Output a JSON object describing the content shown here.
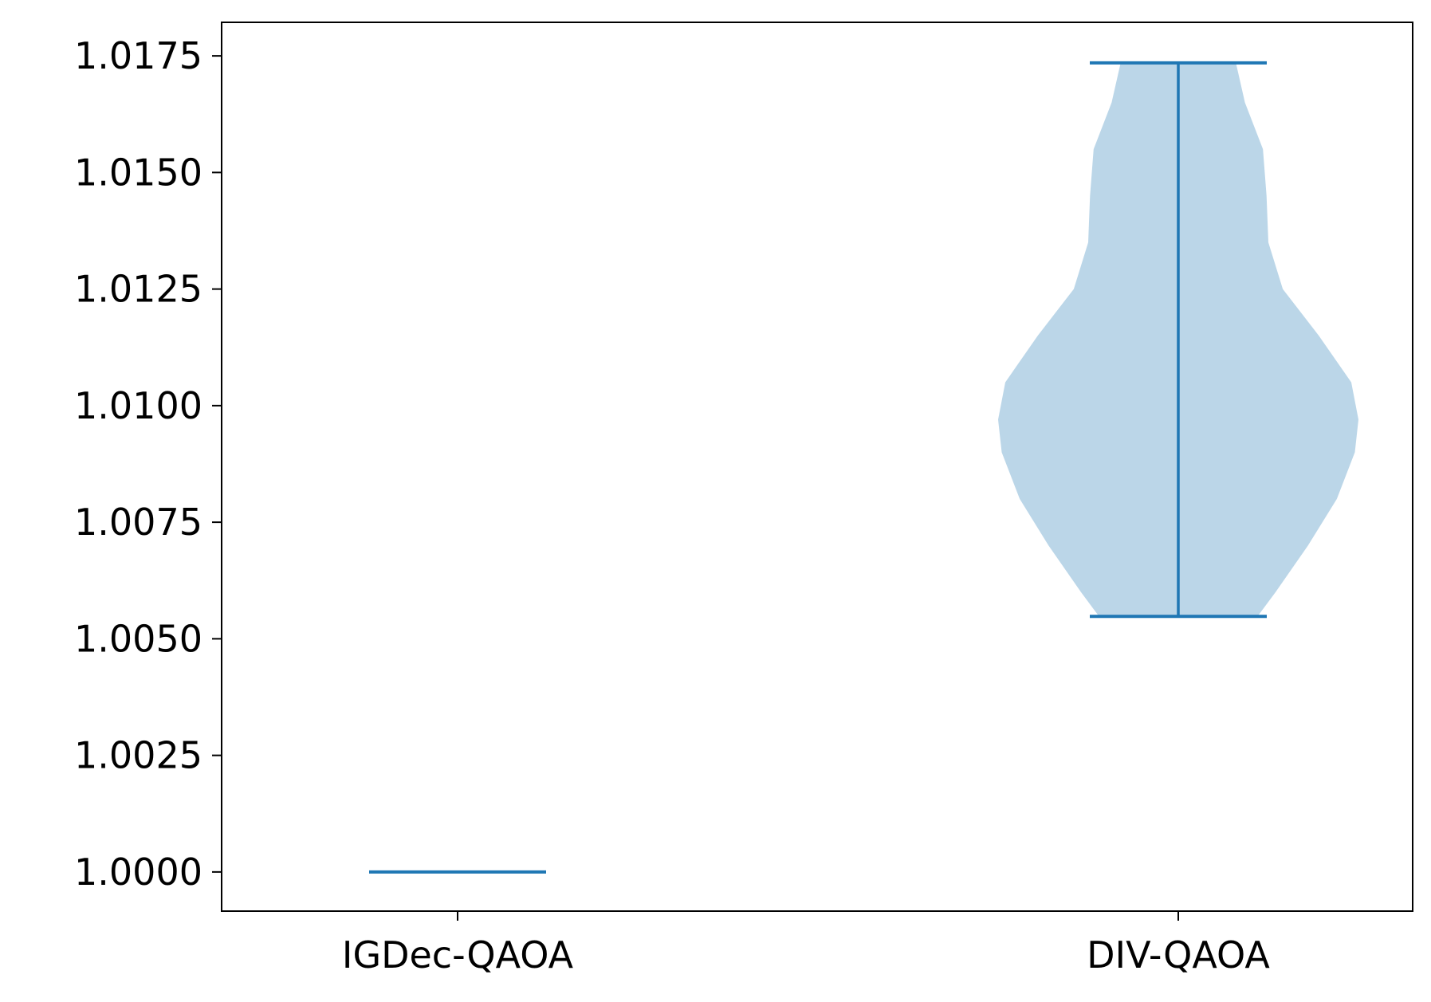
{
  "chart_data": {
    "type": "violin",
    "title": "",
    "xlabel": "",
    "ylabel": "",
    "categories": [
      "IGDec-QAOA",
      "DIV-QAOA"
    ],
    "ylim": [
      0.99916,
      1.01822
    ],
    "yticks": [
      1.0,
      1.0025,
      1.005,
      1.0075,
      1.01,
      1.0125,
      1.015,
      1.0175
    ],
    "ytick_labels": [
      "1.0000",
      "1.0025",
      "1.0050",
      "1.0075",
      "1.0100",
      "1.0125",
      "1.0150",
      "1.0175"
    ],
    "grid": false,
    "series": [
      {
        "category": "IGDec-QAOA",
        "min": 1.0,
        "max": 1.0,
        "density": []
      },
      {
        "category": "DIV-QAOA",
        "min": 1.00548,
        "max": 1.01735,
        "density": [
          [
            1.00548,
            0.44
          ],
          [
            1.006,
            0.54
          ],
          [
            1.007,
            0.72
          ],
          [
            1.008,
            0.88
          ],
          [
            1.009,
            0.98
          ],
          [
            1.0097,
            1.0
          ],
          [
            1.0105,
            0.96
          ],
          [
            1.0115,
            0.78
          ],
          [
            1.0125,
            0.58
          ],
          [
            1.0135,
            0.5
          ],
          [
            1.0145,
            0.49
          ],
          [
            1.0155,
            0.47
          ],
          [
            1.0165,
            0.37
          ],
          [
            1.01735,
            0.32
          ]
        ]
      }
    ],
    "colors": {
      "line": "#1f77b4",
      "fill": "#1f77b4",
      "fill_opacity": 0.3
    }
  }
}
